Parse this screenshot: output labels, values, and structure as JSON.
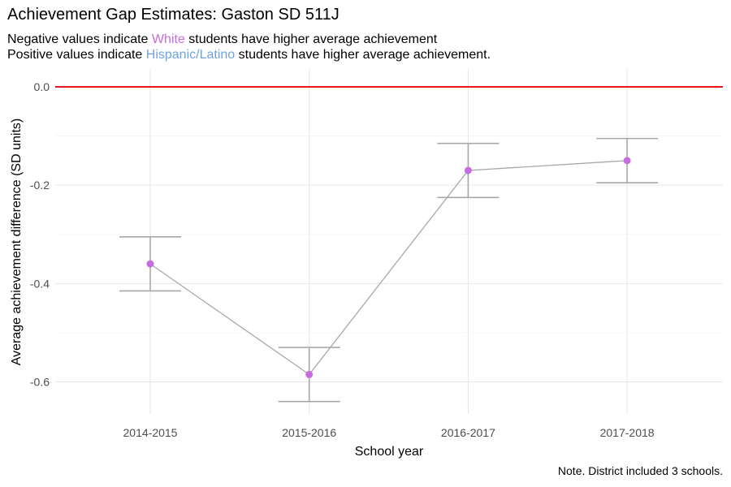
{
  "title": "Achievement Gap Estimates: Gaston SD 511J",
  "subtitle": {
    "line1_prefix": "Negative values indicate ",
    "line1_group": "White",
    "line1_suffix": " students have higher average achievement",
    "line2_prefix": "Positive values indicate ",
    "line2_group": "Hispanic/Latino",
    "line2_suffix": " students have higher average achievement."
  },
  "caption": "Note. District included 3 schools.",
  "colors": {
    "white_group": "#c86dde",
    "hispanic_group": "#6ea2e0",
    "reference_line": "#e8161c",
    "points": "#c86dde",
    "line": "#a8a8a8"
  },
  "chart_data": {
    "type": "line",
    "categories": [
      "2014-2015",
      "2015-2016",
      "2016-2017",
      "2017-2018"
    ],
    "values": [
      -0.36,
      -0.585,
      -0.17,
      -0.15
    ],
    "error_lower": [
      -0.415,
      -0.64,
      -0.225,
      -0.195
    ],
    "error_upper": [
      -0.305,
      -0.53,
      -0.115,
      -0.105
    ],
    "reference_line": 0.0,
    "xlabel": "School year",
    "ylabel": "Average achievement difference (SD units)",
    "ylim": [
      -0.67,
      0.02
    ],
    "yticks": [
      0.0,
      -0.2,
      -0.4,
      -0.6
    ],
    "ytick_labels": [
      "0.0",
      "-0.2",
      "-0.4",
      "-0.6"
    ],
    "grid": true,
    "legend": "none"
  }
}
